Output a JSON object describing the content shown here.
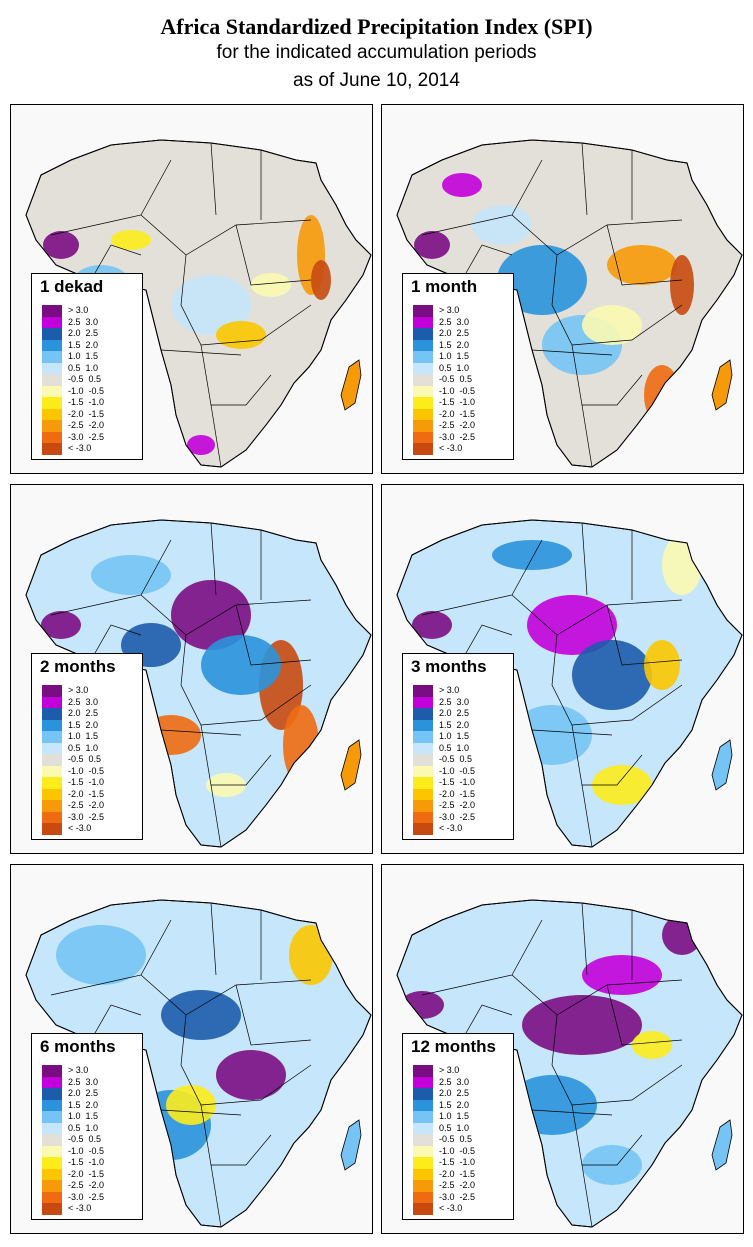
{
  "header": {
    "title": "Africa Standardized Precipitation Index (SPI)",
    "subtitle": "for the indicated accumulation periods",
    "date_line": "as of June 10, 2014"
  },
  "legend_classes": [
    {
      "label": "> 3.0",
      "color": "#7b0d83"
    },
    {
      "label": "2.5  3.0",
      "color": "#c200d9"
    },
    {
      "label": "2.0  2.5",
      "color": "#1d5bab"
    },
    {
      "label": "1.5  2.0",
      "color": "#2a93dc"
    },
    {
      "label": "1.0  1.5",
      "color": "#76c4f5"
    },
    {
      "label": "0.5  1.0",
      "color": "#c5e6fb"
    },
    {
      "label": "-0.5  0.5",
      "color": "#e2e0d8"
    },
    {
      "label": "-1.0  -0.5",
      "color": "#fbf9b2"
    },
    {
      "label": "-1.5  -1.0",
      "color": "#fcec1c"
    },
    {
      "label": "-2.0  -1.5",
      "color": "#fbc600"
    },
    {
      "label": "-2.5  -2.0",
      "color": "#f79a0a"
    },
    {
      "label": "-3.0  -2.5",
      "color": "#ee6b12"
    },
    {
      "label": "< -3.0",
      "color": "#c84a10"
    }
  ],
  "panels": [
    {
      "label": "1 dekad"
    },
    {
      "label": "1 month"
    },
    {
      "label": "2 months"
    },
    {
      "label": "3 months"
    },
    {
      "label": "6 months"
    },
    {
      "label": "12 months"
    }
  ]
}
